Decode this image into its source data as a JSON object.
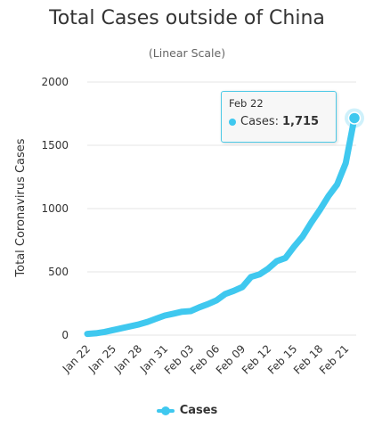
{
  "chart_data": {
    "type": "line",
    "title": "Total Cases outside of China",
    "subtitle": "(Linear Scale)",
    "ylabel": "Total Coronavirus Cases",
    "xlabel": "",
    "ylim": [
      0,
      2000
    ],
    "yticks": [
      0,
      500,
      1000,
      1500,
      2000
    ],
    "grid": true,
    "legend_position": "bottom",
    "x": [
      "Jan 22",
      "Jan 23",
      "Jan 24",
      "Jan 25",
      "Jan 26",
      "Jan 27",
      "Jan 28",
      "Jan 29",
      "Jan 30",
      "Jan 31",
      "Feb 01",
      "Feb 02",
      "Feb 03",
      "Feb 04",
      "Feb 05",
      "Feb 06",
      "Feb 07",
      "Feb 08",
      "Feb 09",
      "Feb 10",
      "Feb 11",
      "Feb 12",
      "Feb 13",
      "Feb 14",
      "Feb 15",
      "Feb 16",
      "Feb 17",
      "Feb 18",
      "Feb 19",
      "Feb 20",
      "Feb 21",
      "Feb 22"
    ],
    "x_tick_labels": [
      "Jan 22",
      "Jan 25",
      "Jan 28",
      "Jan 31",
      "Feb 03",
      "Feb 06",
      "Feb 09",
      "Feb 12",
      "Feb 15",
      "Feb 18",
      "Feb 21"
    ],
    "series": [
      {
        "name": "Cases",
        "color": "#3fc8ef",
        "values": [
          10,
          15,
          25,
          40,
          55,
          70,
          85,
          105,
          130,
          155,
          170,
          185,
          190,
          220,
          245,
          275,
          325,
          350,
          380,
          460,
          480,
          525,
          585,
          610,
          700,
          780,
          890,
          990,
          1100,
          1190,
          1360,
          1715
        ]
      }
    ],
    "tooltip": {
      "date": "Feb 22",
      "series_name": "Cases",
      "value_text": "1,715"
    }
  }
}
